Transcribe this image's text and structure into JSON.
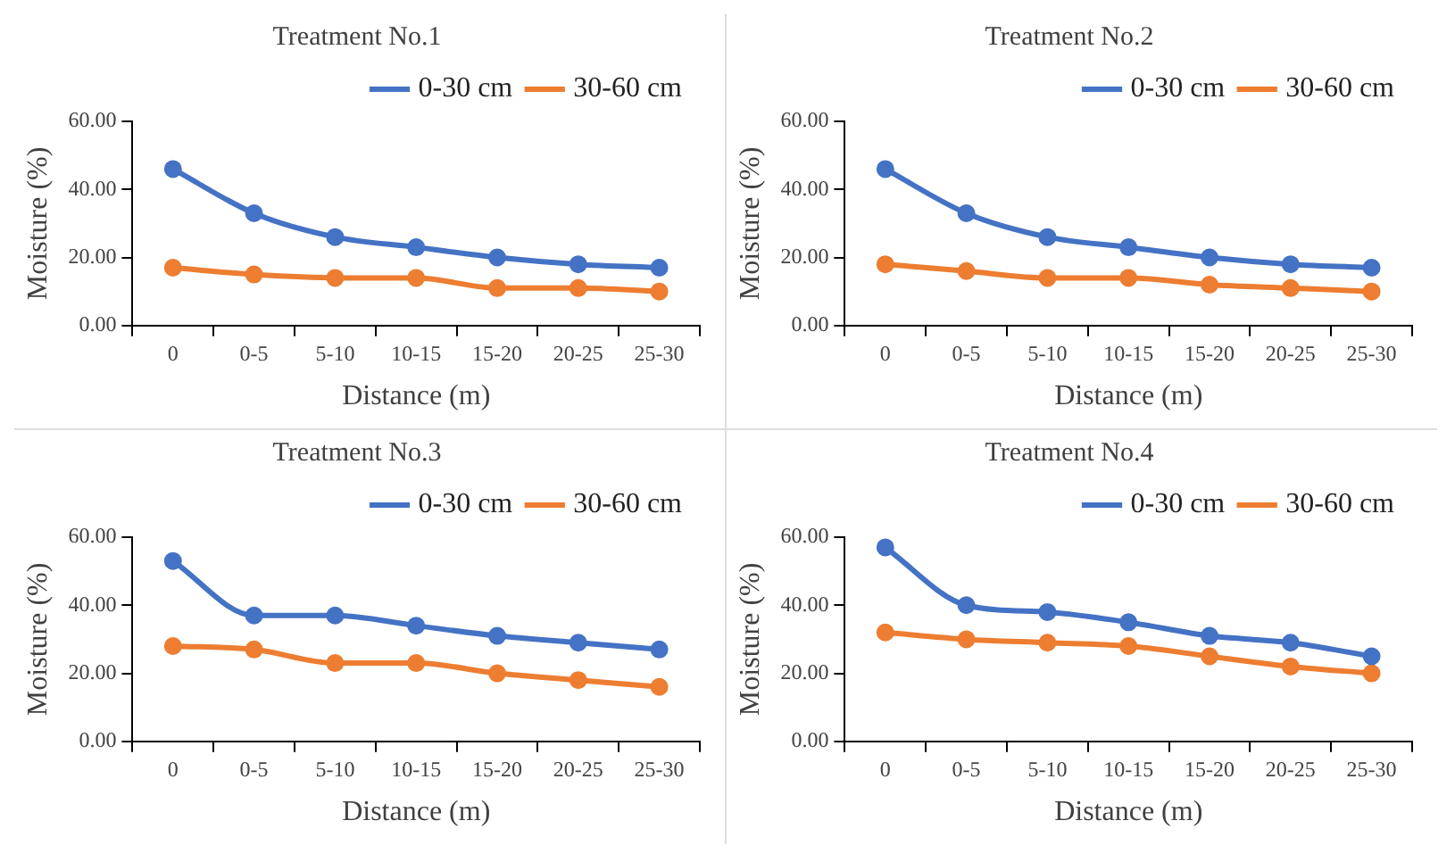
{
  "chart_data": [
    {
      "type": "line",
      "title": "Treatment No.1",
      "xlabel": "Distance (m)",
      "ylabel": "Moisture (%)",
      "categories": [
        "0",
        "0-5",
        "5-10",
        "10-15",
        "15-20",
        "20-25",
        "25-30"
      ],
      "series": [
        {
          "name": "0-30 cm",
          "color": "#4472c4",
          "values": [
            46,
            33,
            26,
            23,
            20,
            18,
            17
          ]
        },
        {
          "name": "30-60 cm",
          "color": "#ed7d31",
          "values": [
            17,
            15,
            14,
            14,
            11,
            11,
            10
          ]
        }
      ],
      "ylim": [
        0,
        60
      ],
      "yticks": [
        {
          "value": 0,
          "label": "0.00"
        },
        {
          "value": 20,
          "label": "20.00"
        },
        {
          "value": 40,
          "label": "40.00"
        },
        {
          "value": 60,
          "label": "60.00"
        }
      ],
      "grid": false,
      "legend": "top right",
      "marker": "circle",
      "line_style": "solid"
    },
    {
      "type": "line",
      "title": "Treatment No.2",
      "xlabel": "Distance (m)",
      "ylabel": "Moisture (%)",
      "categories": [
        "0",
        "0-5",
        "5-10",
        "10-15",
        "15-20",
        "20-25",
        "25-30"
      ],
      "series": [
        {
          "name": "0-30 cm",
          "color": "#4472c4",
          "values": [
            46,
            33,
            26,
            23,
            20,
            18,
            17
          ]
        },
        {
          "name": "30-60 cm",
          "color": "#ed7d31",
          "values": [
            18,
            16,
            14,
            14,
            12,
            11,
            10
          ]
        }
      ],
      "ylim": [
        0,
        60
      ],
      "yticks": [
        {
          "value": 0,
          "label": "0.00"
        },
        {
          "value": 20,
          "label": "20.00"
        },
        {
          "value": 40,
          "label": "40.00"
        },
        {
          "value": 60,
          "label": "60.00"
        }
      ],
      "grid": false,
      "legend": "top right",
      "marker": "circle",
      "line_style": "solid"
    },
    {
      "type": "line",
      "title": "Treatment No.3",
      "xlabel": "Distance (m)",
      "ylabel": "Moisture (%)",
      "categories": [
        "0",
        "0-5",
        "5-10",
        "10-15",
        "15-20",
        "20-25",
        "25-30"
      ],
      "series": [
        {
          "name": "0-30 cm",
          "color": "#4472c4",
          "values": [
            53,
            37,
            37,
            34,
            31,
            29,
            27
          ]
        },
        {
          "name": "30-60 cm",
          "color": "#ed7d31",
          "values": [
            28,
            27,
            23,
            23,
            20,
            18,
            16
          ]
        }
      ],
      "ylim": [
        0,
        60
      ],
      "yticks": [
        {
          "value": 0,
          "label": "0.00"
        },
        {
          "value": 20,
          "label": "20.00"
        },
        {
          "value": 40,
          "label": "40.00"
        },
        {
          "value": 60,
          "label": "60.00"
        }
      ],
      "grid": false,
      "legend": "top right",
      "marker": "circle",
      "line_style": "solid"
    },
    {
      "type": "line",
      "title": "Treatment No.4",
      "xlabel": "Distance (m)",
      "ylabel": "Moisture (%)",
      "categories": [
        "0",
        "0-5",
        "5-10",
        "10-15",
        "15-20",
        "20-25",
        "25-30"
      ],
      "series": [
        {
          "name": "0-30 cm",
          "color": "#4472c4",
          "values": [
            57,
            40,
            38,
            35,
            31,
            29,
            25
          ]
        },
        {
          "name": "30-60 cm",
          "color": "#ed7d31",
          "values": [
            32,
            30,
            29,
            28,
            25,
            22,
            20
          ]
        }
      ],
      "ylim": [
        0,
        60
      ],
      "yticks": [
        {
          "value": 0,
          "label": "0.00"
        },
        {
          "value": 20,
          "label": "20.00"
        },
        {
          "value": 40,
          "label": "40.00"
        },
        {
          "value": 60,
          "label": "60.00"
        }
      ],
      "grid": false,
      "legend": "top right",
      "marker": "circle",
      "line_style": "solid"
    }
  ]
}
